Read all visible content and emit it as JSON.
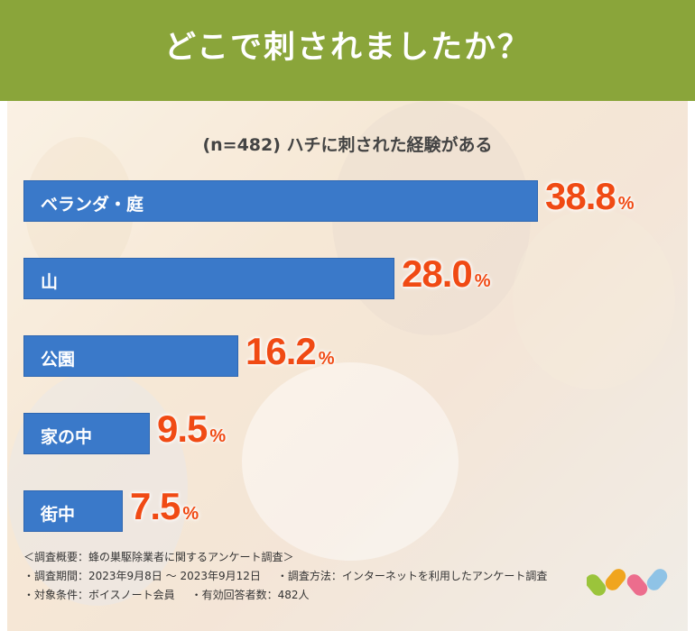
{
  "header": {
    "title": "どこで刺されましたか？"
  },
  "chart_data": {
    "type": "bar",
    "title": "(n=482) ハチに刺された経験がある",
    "categories": [
      "ベランダ・庭",
      "山",
      "公園",
      "家の中",
      "街中"
    ],
    "values": [
      38.8,
      28.0,
      16.2,
      9.5,
      7.5
    ],
    "value_labels": [
      "38.8",
      "28.0",
      "16.2",
      "9.5",
      "7.5"
    ],
    "unit": "%",
    "xlim": [
      0,
      38.8
    ],
    "orientation": "horizontal",
    "bar_color": "#3a79c9",
    "value_color": "#f04a14"
  },
  "footer": {
    "summary": "＜調査概要：蜂の巣駆除業者に関するアンケート調査＞",
    "period": "・調査期間：2023年9月8日 〜 2023年9月12日",
    "method": "・調査方法：インターネットを利用したアンケート調査",
    "target": "・対象条件：ボイスノート会員",
    "responses": "・有効回答者数：482人"
  },
  "colors": {
    "header_bg": "#8aa53a",
    "logo": [
      "#9bc43b",
      "#f0a51e",
      "#ec6d8d",
      "#8fc3e6"
    ]
  },
  "logo": {
    "icon": "brand-logo-icon"
  }
}
